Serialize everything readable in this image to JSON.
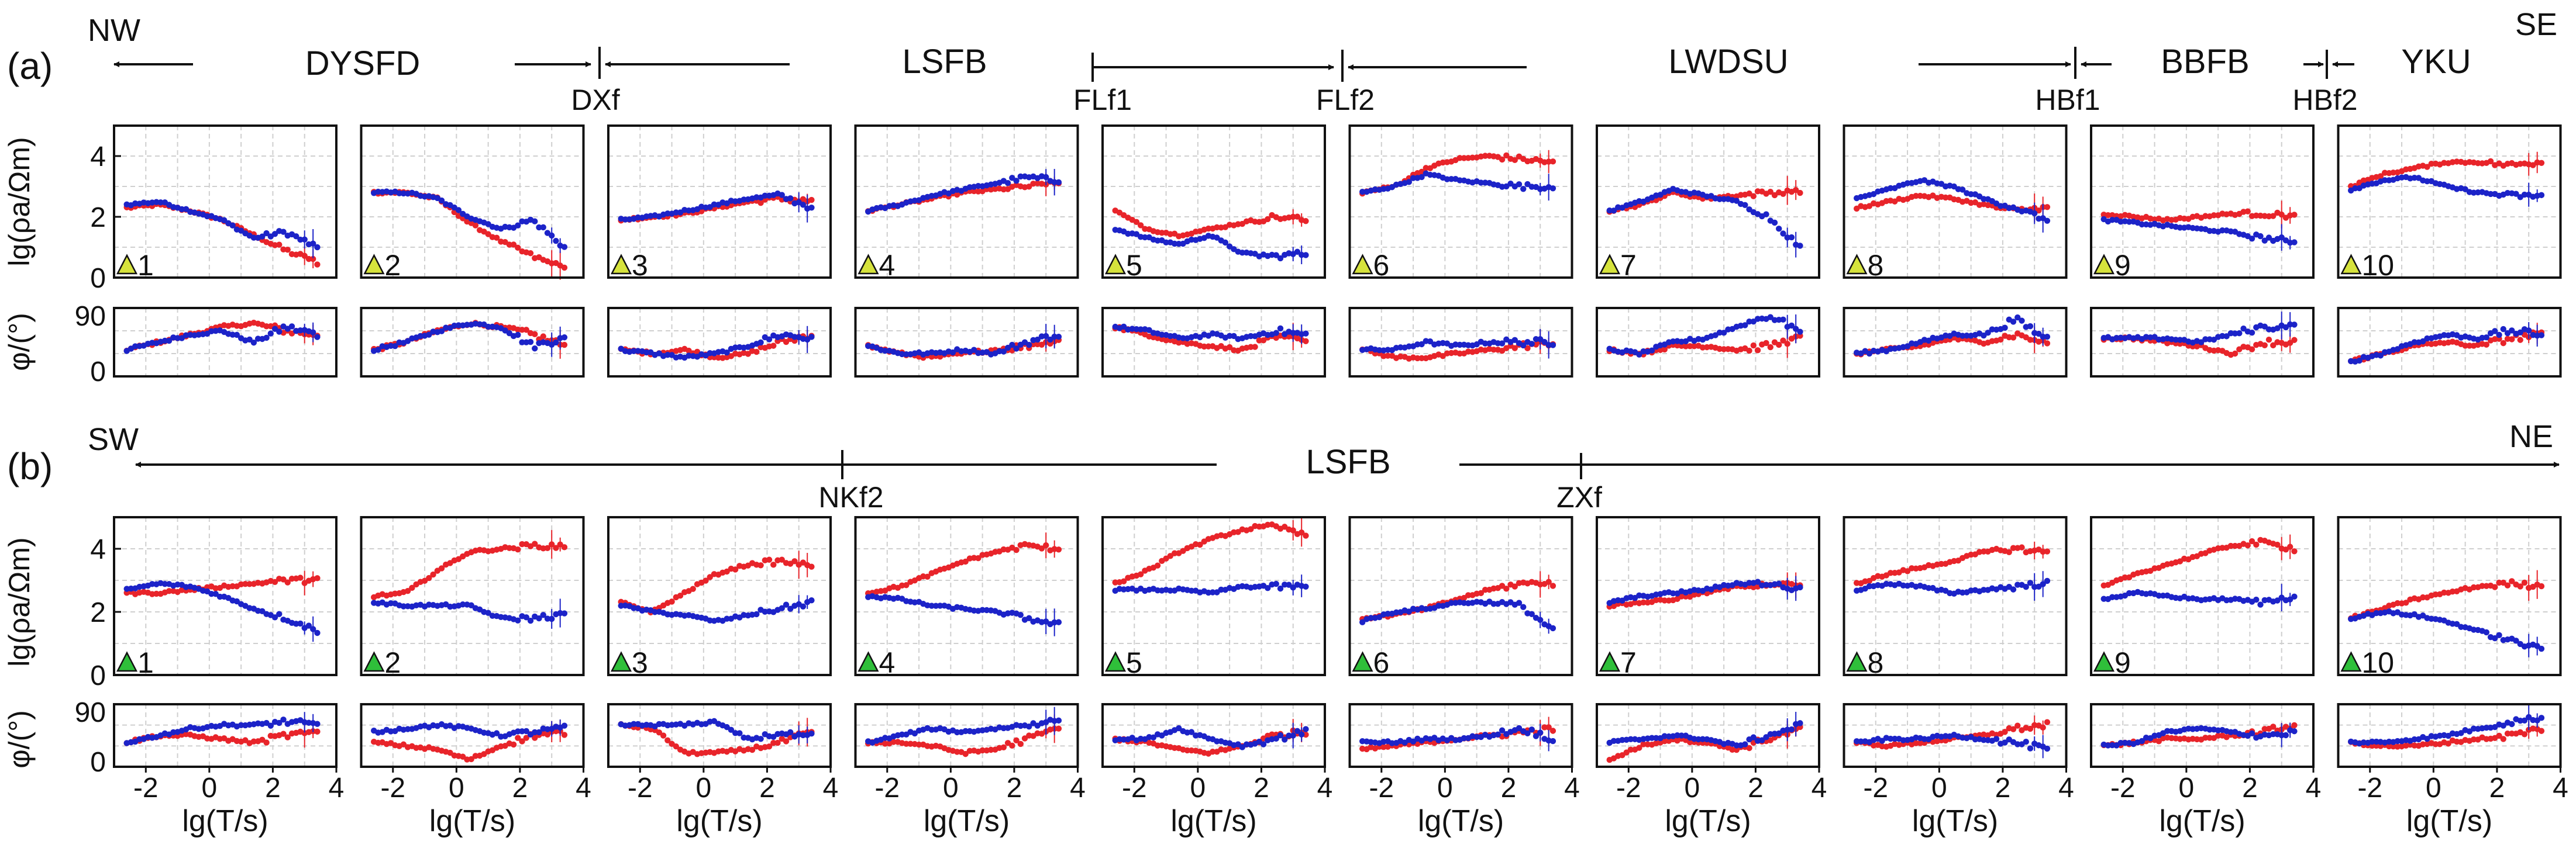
{
  "figure": {
    "panel_a": {
      "label": "(a)",
      "corner_left": "NW",
      "corner_right": "SE",
      "blocks": [
        "DYSFD",
        "LSFB",
        "LWDSU",
        "BBFB",
        "YKU"
      ],
      "faults": [
        "DXf",
        "FLf1",
        "FLf2",
        "HBf1",
        "HBf2"
      ],
      "station_color": "#d6e33c"
    },
    "panel_b": {
      "label": "(b)",
      "corner_left": "SW",
      "corner_right": "NE",
      "blocks": [
        "LSFB"
      ],
      "faults": [
        "NKf2",
        "ZXf"
      ],
      "station_color": "#2fbf3a"
    },
    "rho_ylabel": "lg(ρa/Ωm)",
    "phase_ylabel": "φ/(°)",
    "xlabel": "lg(T/s)",
    "rho_ticks": [
      "0",
      "2",
      "4"
    ],
    "phase_ticks": [
      "0",
      "90"
    ],
    "x_ticks": [
      "-2",
      "0",
      "2",
      "4"
    ]
  },
  "chart_data": {
    "type": "scatter",
    "title": "",
    "xlabel": "lg(T/s)",
    "ylabel_rho": "lg(ρa/Ωm)",
    "ylabel_phase": "φ/(°)",
    "xlim": [
      -3,
      4
    ],
    "ylim_rho": [
      0,
      5
    ],
    "ylim_phase": [
      0,
      90
    ],
    "series_names": [
      "xy (red)",
      "yx (blue)"
    ],
    "series_colors": {
      "xy": "#e8242a",
      "yx": "#1c23c8"
    },
    "x_knots": [
      -2.6,
      -1.6,
      -0.6,
      0.4,
      1.4,
      2.4,
      3.4
    ],
    "rows": [
      {
        "row": "a",
        "stations": [
          {
            "id": "1",
            "rho_xy": [
              2.3,
              2.4,
              2.2,
              1.9,
              1.4,
              0.9,
              0.5
            ],
            "rho_yx": [
              2.4,
              2.5,
              2.2,
              1.9,
              1.3,
              1.5,
              1.0
            ],
            "phase_xy": [
              35,
              45,
              55,
              65,
              70,
              60,
              55
            ],
            "phase_yx": [
              35,
              45,
              55,
              60,
              45,
              65,
              55
            ]
          },
          {
            "id": "2",
            "rho_xy": [
              2.8,
              2.8,
              2.6,
              1.8,
              1.2,
              0.7,
              0.3
            ],
            "rho_yx": [
              2.8,
              2.8,
              2.6,
              2.0,
              1.6,
              1.9,
              1.0
            ],
            "phase_xy": [
              35,
              45,
              60,
              70,
              65,
              55,
              40
            ],
            "phase_yx": [
              35,
              45,
              60,
              70,
              65,
              40,
              50
            ]
          },
          {
            "id": "3",
            "rho_xy": [
              1.9,
              2.0,
              2.1,
              2.3,
              2.5,
              2.6,
              2.5
            ],
            "rho_yx": [
              1.9,
              2.0,
              2.2,
              2.4,
              2.6,
              2.7,
              2.3
            ],
            "phase_xy": [
              35,
              30,
              35,
              25,
              30,
              45,
              55
            ],
            "phase_yx": [
              35,
              30,
              25,
              30,
              40,
              55,
              50
            ]
          },
          {
            "id": "4",
            "rho_xy": [
              2.2,
              2.4,
              2.6,
              2.8,
              2.9,
              3.0,
              3.1
            ],
            "rho_yx": [
              2.2,
              2.4,
              2.7,
              2.9,
              3.1,
              3.3,
              3.2
            ],
            "phase_xy": [
              40,
              30,
              25,
              30,
              35,
              40,
              50
            ],
            "phase_yx": [
              40,
              30,
              30,
              35,
              30,
              45,
              55
            ]
          },
          {
            "id": "5",
            "rho_xy": [
              2.2,
              1.6,
              1.4,
              1.6,
              1.8,
              2.0,
              1.9
            ],
            "rho_yx": [
              1.6,
              1.3,
              1.1,
              1.4,
              0.8,
              0.7,
              0.8
            ],
            "phase_xy": [
              65,
              55,
              45,
              40,
              35,
              50,
              50
            ],
            "phase_yx": [
              65,
              60,
              50,
              55,
              50,
              60,
              55
            ]
          },
          {
            "id": "6",
            "rho_xy": [
              2.8,
              3.0,
              3.6,
              3.9,
              4.0,
              3.9,
              3.8
            ],
            "rho_yx": [
              2.8,
              3.0,
              3.4,
              3.2,
              3.1,
              3.0,
              3.0
            ],
            "phase_xy": [
              35,
              25,
              25,
              30,
              35,
              40,
              45
            ],
            "phase_yx": [
              35,
              35,
              45,
              40,
              45,
              45,
              45
            ]
          },
          {
            "id": "7",
            "rho_xy": [
              2.2,
              2.4,
              2.8,
              2.6,
              2.7,
              2.8,
              2.8
            ],
            "rho_yx": [
              2.2,
              2.5,
              2.9,
              2.7,
              2.5,
              2.0,
              1.0
            ],
            "phase_xy": [
              35,
              30,
              40,
              40,
              35,
              40,
              50
            ],
            "phase_yx": [
              35,
              30,
              45,
              50,
              65,
              80,
              60
            ]
          },
          {
            "id": "8",
            "rho_xy": [
              2.3,
              2.5,
              2.7,
              2.6,
              2.4,
              2.2,
              2.3
            ],
            "rho_yx": [
              2.6,
              2.9,
              3.2,
              3.0,
              2.6,
              2.3,
              1.9
            ],
            "phase_xy": [
              30,
              35,
              40,
              50,
              45,
              55,
              45
            ],
            "phase_yx": [
              30,
              35,
              45,
              55,
              55,
              75,
              50
            ]
          },
          {
            "id": "9",
            "rho_xy": [
              2.1,
              2.0,
              1.9,
              2.0,
              2.1,
              2.1,
              2.0
            ],
            "rho_yx": [
              1.9,
              1.8,
              1.7,
              1.6,
              1.5,
              1.3,
              1.2
            ],
            "phase_xy": [
              50,
              50,
              45,
              40,
              30,
              45,
              45
            ],
            "phase_yx": [
              50,
              50,
              50,
              45,
              55,
              65,
              65
            ]
          },
          {
            "id": "10",
            "rho_xy": [
              3.0,
              3.4,
              3.6,
              3.8,
              3.8,
              3.7,
              3.8
            ],
            "rho_yx": [
              2.9,
              3.2,
              3.3,
              3.0,
              2.8,
              2.7,
              2.7
            ],
            "phase_xy": [
              20,
              30,
              40,
              45,
              40,
              50,
              55
            ],
            "phase_yx": [
              20,
              30,
              45,
              55,
              50,
              60,
              55
            ]
          }
        ]
      },
      {
        "row": "b",
        "stations": [
          {
            "id": "1",
            "rho_xy": [
              2.6,
              2.6,
              2.7,
              2.8,
              2.9,
              3.0,
              3.0
            ],
            "rho_yx": [
              2.7,
              2.9,
              2.8,
              2.5,
              2.1,
              1.8,
              1.4
            ],
            "phase_xy": [
              35,
              45,
              45,
              40,
              35,
              45,
              50
            ],
            "phase_yx": [
              35,
              45,
              55,
              60,
              60,
              65,
              60
            ]
          },
          {
            "id": "2",
            "rho_xy": [
              2.5,
              2.6,
              3.3,
              3.9,
              4.0,
              4.1,
              4.1
            ],
            "rho_yx": [
              2.3,
              2.2,
              2.2,
              2.2,
              1.8,
              1.8,
              1.9
            ],
            "phase_xy": [
              35,
              30,
              25,
              10,
              30,
              45,
              50
            ],
            "phase_yx": [
              50,
              55,
              60,
              55,
              45,
              50,
              55
            ]
          },
          {
            "id": "3",
            "rho_xy": [
              2.3,
              2.0,
              2.6,
              3.2,
              3.5,
              3.6,
              3.5
            ],
            "rho_yx": [
              2.2,
              2.0,
              1.9,
              1.7,
              1.9,
              2.1,
              2.3
            ],
            "phase_xy": [
              60,
              55,
              20,
              20,
              25,
              35,
              50
            ],
            "phase_yx": [
              60,
              60,
              60,
              65,
              40,
              45,
              50
            ]
          },
          {
            "id": "4",
            "rho_xy": [
              2.6,
              2.8,
              3.2,
              3.6,
              3.9,
              4.1,
              4.0
            ],
            "rho_yx": [
              2.5,
              2.4,
              2.2,
              2.1,
              2.0,
              1.8,
              1.6
            ],
            "phase_xy": [
              35,
              35,
              30,
              20,
              25,
              40,
              55
            ],
            "phase_yx": [
              35,
              45,
              55,
              50,
              55,
              60,
              70
            ]
          },
          {
            "id": "5",
            "rho_xy": [
              2.9,
              3.3,
              3.9,
              4.3,
              4.6,
              4.7,
              4.5
            ],
            "rho_yx": [
              2.7,
              2.7,
              2.7,
              2.6,
              2.8,
              2.8,
              2.8
            ],
            "phase_xy": [
              40,
              35,
              25,
              20,
              30,
              45,
              50
            ],
            "phase_yx": [
              40,
              40,
              55,
              40,
              30,
              40,
              50
            ]
          },
          {
            "id": "6",
            "rho_xy": [
              1.8,
              1.9,
              2.1,
              2.4,
              2.7,
              2.9,
              2.9
            ],
            "rho_yx": [
              1.7,
              2.0,
              2.1,
              2.3,
              2.3,
              2.2,
              1.4
            ],
            "phase_xy": [
              25,
              30,
              35,
              40,
              45,
              50,
              55
            ],
            "phase_yx": [
              35,
              35,
              40,
              40,
              45,
              55,
              40
            ]
          },
          {
            "id": "7",
            "rho_xy": [
              2.2,
              2.3,
              2.4,
              2.6,
              2.8,
              2.9,
              2.8
            ],
            "rho_yx": [
              2.3,
              2.5,
              2.6,
              2.7,
              2.9,
              2.9,
              2.7
            ],
            "phase_xy": [
              10,
              30,
              40,
              35,
              25,
              40,
              55
            ],
            "phase_yx": [
              35,
              40,
              45,
              40,
              30,
              45,
              60
            ]
          },
          {
            "id": "8",
            "rho_xy": [
              2.9,
              3.2,
              3.4,
              3.6,
              3.9,
              4.0,
              3.9
            ],
            "rho_yx": [
              2.7,
              2.9,
              2.8,
              2.6,
              2.7,
              2.8,
              2.9
            ],
            "phase_xy": [
              35,
              30,
              35,
              40,
              45,
              55,
              60
            ],
            "phase_yx": [
              35,
              40,
              40,
              45,
              40,
              35,
              25
            ]
          },
          {
            "id": "9",
            "rho_xy": [
              2.8,
              3.2,
              3.5,
              3.8,
              4.1,
              4.2,
              4.0
            ],
            "rho_yx": [
              2.4,
              2.6,
              2.5,
              2.4,
              2.4,
              2.3,
              2.5
            ],
            "phase_xy": [
              30,
              35,
              40,
              40,
              45,
              50,
              60
            ],
            "phase_yx": [
              30,
              35,
              50,
              55,
              50,
              45,
              50
            ]
          },
          {
            "id": "10",
            "rho_xy": [
              1.8,
              2.1,
              2.4,
              2.6,
              2.8,
              2.9,
              2.8
            ],
            "rho_yx": [
              1.8,
              2.0,
              1.9,
              1.7,
              1.4,
              1.1,
              0.8
            ],
            "phase_xy": [
              35,
              30,
              30,
              35,
              40,
              45,
              55
            ],
            "phase_yx": [
              35,
              35,
              40,
              45,
              55,
              65,
              70
            ]
          }
        ]
      }
    ]
  }
}
